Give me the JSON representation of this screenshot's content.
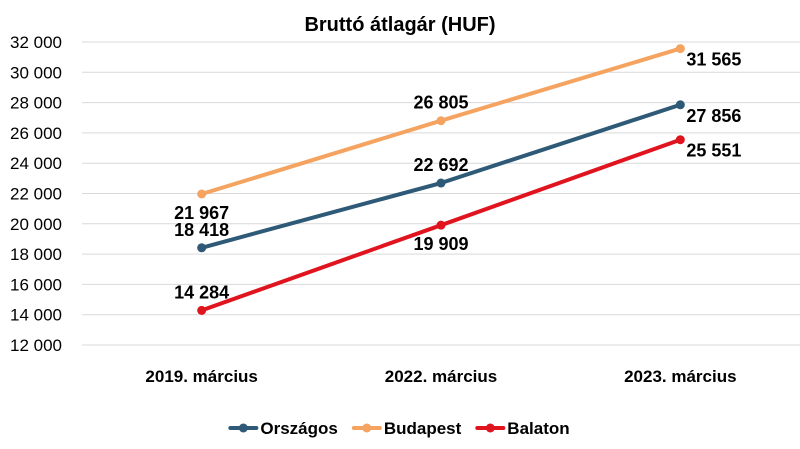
{
  "chart_data": {
    "type": "line",
    "title": "Bruttó átlagár (HUF)",
    "xlabel": "",
    "ylabel": "",
    "categories": [
      "2019. március",
      "2022. március",
      "2023. március"
    ],
    "ylim": [
      12000,
      32000
    ],
    "yticks": [
      12000,
      14000,
      16000,
      18000,
      20000,
      22000,
      24000,
      26000,
      28000,
      30000,
      32000
    ],
    "ytick_labels": [
      "12 000",
      "14 000",
      "16 000",
      "18 000",
      "20 000",
      "22 000",
      "24 000",
      "26 000",
      "28 000",
      "30 000",
      "32 000"
    ],
    "grid": true,
    "legend_position": "bottom",
    "series": [
      {
        "name": "Országos",
        "color": "#2e5a77",
        "values": [
          18418,
          22692,
          27856
        ],
        "labels": [
          "18 418",
          "22 692",
          "27 856"
        ],
        "label_positions": [
          "above",
          "above",
          "right"
        ]
      },
      {
        "name": "Budapest",
        "color": "#f4a460",
        "values": [
          21967,
          26805,
          31565
        ],
        "labels": [
          "21 967",
          "26 805",
          "31 565"
        ],
        "label_positions": [
          "below",
          "above",
          "right"
        ]
      },
      {
        "name": "Balaton",
        "color": "#e0141e",
        "values": [
          14284,
          19909,
          25551
        ],
        "labels": [
          "14 284",
          "19 909",
          "25 551"
        ],
        "label_positions": [
          "above",
          "below",
          "right"
        ]
      }
    ]
  }
}
